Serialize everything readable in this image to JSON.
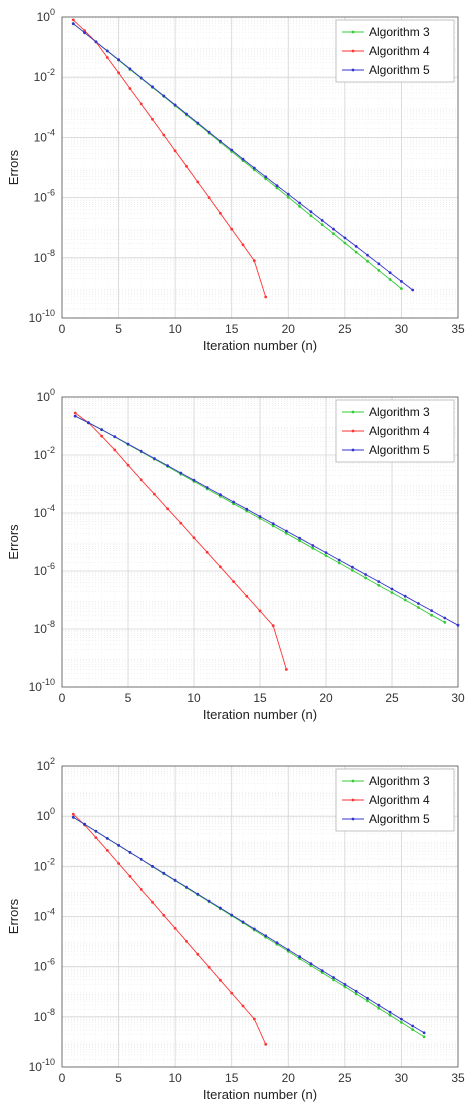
{
  "chart_data": [
    {
      "type": "line",
      "xlabel": "Iteration number (n)",
      "ylabel": "Errors",
      "xlim": [
        0,
        35
      ],
      "xticks": [
        0,
        5,
        10,
        15,
        20,
        25,
        30,
        35
      ],
      "y_scale": "log",
      "ylim_exponent": [
        -10,
        0
      ],
      "yticks_exponent": [
        -10,
        -8,
        -6,
        -4,
        -2,
        0
      ],
      "grid": true,
      "legend_position": "top-right",
      "series": [
        {
          "name": "Algorithm 3",
          "color": "#33cc33",
          "x": [
            1,
            2,
            3,
            4,
            5,
            6,
            7,
            8,
            9,
            10,
            11,
            12,
            13,
            14,
            15,
            16,
            17,
            18,
            19,
            20,
            21,
            22,
            23,
            24,
            25,
            26,
            27,
            28,
            29,
            30
          ],
          "y": [
            0.6,
            0.3,
            0.15,
            0.074,
            0.037,
            0.018,
            0.0092,
            0.0046,
            0.0023,
            0.00113,
            0.00056,
            0.00028,
            0.000139,
            6.9e-05,
            3.4e-05,
            1.7e-05,
            8.4e-06,
            4.2e-06,
            2.1e-06,
            1.03e-06,
            5.1e-07,
            2.5e-07,
            1.26e-07,
            6.3e-08,
            3.1e-08,
            1.55e-08,
            7.7e-09,
            3.8e-09,
            1.9e-09,
            9.5e-10
          ]
        },
        {
          "name": "Algorithm 4",
          "color": "#ff3333",
          "x": [
            1,
            2,
            3,
            4,
            5,
            6,
            7,
            8,
            9,
            10,
            11,
            12,
            13,
            14,
            15,
            16,
            17,
            18
          ],
          "y": [
            0.8,
            0.35,
            0.15,
            0.045,
            0.014,
            0.0042,
            0.0013,
            0.0004,
            0.00012,
            3.6e-05,
            1.1e-05,
            3.3e-06,
            1e-06,
            3e-07,
            9e-08,
            2.7e-08,
            8e-09,
            5e-10
          ]
        },
        {
          "name": "Algorithm 5",
          "color": "#3333cc",
          "x": [
            1,
            2,
            3,
            4,
            5,
            6,
            7,
            8,
            9,
            10,
            11,
            12,
            13,
            14,
            15,
            16,
            17,
            18,
            19,
            20,
            21,
            22,
            23,
            24,
            25,
            26,
            27,
            28,
            29,
            30,
            31
          ],
          "y": [
            0.6,
            0.3,
            0.15,
            0.075,
            0.038,
            0.019,
            0.0095,
            0.0048,
            0.0024,
            0.0012,
            0.0006,
            0.0003,
            0.00015,
            7.5e-05,
            3.8e-05,
            1.9e-05,
            9.6e-06,
            4.9e-06,
            2.5e-06,
            1.3e-06,
            6.6e-07,
            3.4e-07,
            1.75e-07,
            9e-08,
            4.6e-08,
            2.4e-08,
            1.23e-08,
            6.3e-09,
            3.2e-09,
            1.65e-09,
            8.5e-10
          ]
        }
      ]
    },
    {
      "type": "line",
      "xlabel": "Iteration number (n)",
      "ylabel": "Errors",
      "xlim": [
        0,
        30
      ],
      "xticks": [
        0,
        5,
        10,
        15,
        20,
        25,
        30
      ],
      "y_scale": "log",
      "ylim_exponent": [
        -10,
        0
      ],
      "yticks_exponent": [
        -10,
        -8,
        -6,
        -4,
        -2,
        0
      ],
      "grid": true,
      "legend_position": "top-right",
      "series": [
        {
          "name": "Algorithm 3",
          "color": "#33cc33",
          "x": [
            1,
            2,
            3,
            4,
            5,
            6,
            7,
            8,
            9,
            10,
            11,
            12,
            13,
            14,
            15,
            16,
            17,
            18,
            19,
            20,
            21,
            22,
            23,
            24,
            25,
            26,
            27,
            28,
            29
          ],
          "y": [
            0.22,
            0.13,
            0.075,
            0.042,
            0.023,
            0.013,
            0.0072,
            0.004,
            0.0022,
            0.00123,
            0.00068,
            0.00038,
            0.00021,
            0.000117,
            6.5e-05,
            3.6e-05,
            2e-05,
            1.1e-05,
            6.1e-06,
            3.4e-06,
            1.9e-06,
            1.05e-06,
            5.8e-07,
            3.2e-07,
            1.8e-07,
            1e-07,
            5.5e-08,
            3e-08,
            1.7e-08
          ]
        },
        {
          "name": "Algorithm 4",
          "color": "#ff3333",
          "x": [
            1,
            2,
            3,
            4,
            5,
            6,
            7,
            8,
            9,
            10,
            11,
            12,
            13,
            14,
            15,
            16,
            17
          ],
          "y": [
            0.28,
            0.13,
            0.045,
            0.015,
            0.0045,
            0.0014,
            0.00045,
            0.00014,
            4.5e-05,
            1.4e-05,
            4.4e-06,
            1.4e-06,
            4.3e-07,
            1.35e-07,
            4.2e-08,
            1.3e-08,
            4e-10
          ]
        },
        {
          "name": "Algorithm 5",
          "color": "#3333cc",
          "x": [
            1,
            2,
            3,
            4,
            5,
            6,
            7,
            8,
            9,
            10,
            11,
            12,
            13,
            14,
            15,
            16,
            17,
            18,
            19,
            20,
            21,
            22,
            23,
            24,
            25,
            26,
            27,
            28,
            29,
            30
          ],
          "y": [
            0.22,
            0.13,
            0.075,
            0.043,
            0.024,
            0.0135,
            0.0076,
            0.0043,
            0.0024,
            0.00135,
            0.00076,
            0.00043,
            0.00024,
            0.000135,
            7.6e-05,
            4.3e-05,
            2.4e-05,
            1.35e-05,
            7.6e-06,
            4.3e-06,
            2.4e-06,
            1.35e-06,
            7.6e-07,
            4.3e-07,
            2.4e-07,
            1.35e-07,
            7.6e-08,
            4.3e-08,
            2.4e-08,
            1.35e-08
          ]
        }
      ]
    },
    {
      "type": "line",
      "xlabel": "Iteration number (n)",
      "ylabel": "Errors",
      "xlim": [
        0,
        35
      ],
      "xticks": [
        0,
        5,
        10,
        15,
        20,
        25,
        30,
        35
      ],
      "y_scale": "log",
      "ylim_exponent": [
        -10,
        2
      ],
      "yticks_exponent": [
        -10,
        -8,
        -6,
        -4,
        -2,
        0,
        2
      ],
      "grid": true,
      "legend_position": "top-right",
      "series": [
        {
          "name": "Algorithm 3",
          "color": "#33cc33",
          "x": [
            1,
            2,
            3,
            4,
            5,
            6,
            7,
            8,
            9,
            10,
            11,
            12,
            13,
            14,
            15,
            16,
            17,
            18,
            19,
            20,
            21,
            22,
            23,
            24,
            25,
            26,
            27,
            28,
            29,
            30,
            31,
            32
          ],
          "y": [
            0.9,
            0.48,
            0.25,
            0.13,
            0.068,
            0.036,
            0.019,
            0.0098,
            0.0051,
            0.0027,
            0.0014,
            0.00074,
            0.00039,
            0.000205,
            0.000107,
            5.6e-05,
            2.9e-05,
            1.5e-05,
            7.9e-06,
            4.1e-06,
            2.1e-06,
            1.1e-06,
            5.8e-07,
            3e-07,
            1.57e-07,
            8.2e-08,
            4.3e-08,
            2.2e-08,
            1.15e-08,
            6e-09,
            3.1e-09,
            1.6e-09
          ]
        },
        {
          "name": "Algorithm 4",
          "color": "#ff3333",
          "x": [
            1,
            2,
            3,
            4,
            5,
            6,
            7,
            8,
            9,
            10,
            11,
            12,
            13,
            14,
            15,
            16,
            17,
            18
          ],
          "y": [
            1.2,
            0.45,
            0.14,
            0.043,
            0.013,
            0.004,
            0.0012,
            0.00037,
            0.000112,
            3.4e-05,
            1.03e-05,
            3.1e-06,
            9.5e-07,
            2.9e-07,
            8.8e-08,
            2.7e-08,
            8.2e-09,
            8e-10
          ]
        },
        {
          "name": "Algorithm 5",
          "color": "#3333cc",
          "x": [
            1,
            2,
            3,
            4,
            5,
            6,
            7,
            8,
            9,
            10,
            11,
            12,
            13,
            14,
            15,
            16,
            17,
            18,
            19,
            20,
            21,
            22,
            23,
            24,
            25,
            26,
            27,
            28,
            29,
            30,
            31,
            32
          ],
          "y": [
            0.9,
            0.48,
            0.25,
            0.13,
            0.069,
            0.036,
            0.019,
            0.01,
            0.0053,
            0.0028,
            0.00148,
            0.00078,
            0.00041,
            0.000218,
            0.000115,
            6.1e-05,
            3.2e-05,
            1.7e-05,
            9e-06,
            4.7e-06,
            2.5e-06,
            1.33e-06,
            7e-07,
            3.7e-07,
            1.96e-07,
            1.04e-07,
            5.5e-08,
            2.9e-08,
            1.53e-08,
            8.1e-09,
            4.3e-09,
            2.3e-09
          ]
        }
      ]
    }
  ]
}
